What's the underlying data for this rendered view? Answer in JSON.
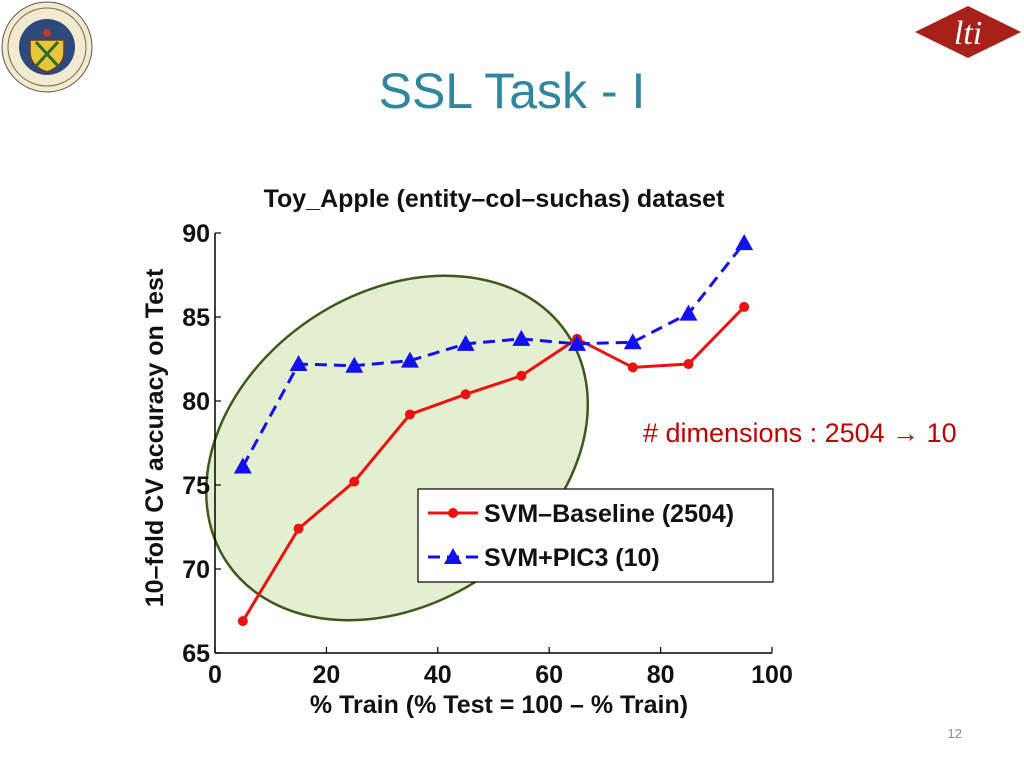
{
  "slide": {
    "title": "SSL Task - I",
    "page_number": "12",
    "annotation": "# dimensions : 2504 → 10",
    "logo_text": "lti",
    "seal_text": "Carnegie-Mellon University · Pittsburgh Pennsylvania 1900",
    "colors": {
      "title": "#31859c",
      "annotation": "#c00000",
      "lti_red": "#a8201a"
    }
  },
  "chart_data": {
    "type": "line",
    "title": "Toy_Apple (entity–col–suchas) dataset",
    "xlabel": "% Train (% Test = 100 – % Train)",
    "ylabel": "10–fold CV accuracy on Test",
    "xlim": [
      0,
      100
    ],
    "ylim": [
      65,
      90
    ],
    "xticks": [
      0,
      20,
      40,
      60,
      80,
      100
    ],
    "yticks": [
      65,
      70,
      75,
      80,
      85,
      90
    ],
    "grid": false,
    "legend_position": "lower-right",
    "x": [
      5,
      15,
      25,
      35,
      45,
      55,
      65,
      75,
      85,
      95
    ],
    "series": [
      {
        "name": "SVM–Baseline (2504)",
        "color": "#ee1111",
        "marker": "circle",
        "line_style": "solid",
        "values": [
          66.9,
          72.4,
          75.2,
          79.2,
          80.4,
          81.5,
          83.7,
          82.0,
          82.2,
          85.6
        ]
      },
      {
        "name": "SVM+PIC3 (10)",
        "color": "#1111ee",
        "marker": "triangle",
        "line_style": "dashed",
        "values": [
          76.1,
          82.2,
          82.1,
          82.4,
          83.4,
          83.7,
          83.4,
          83.5,
          85.2,
          89.4
        ]
      }
    ],
    "highlight": {
      "shape": "ellipse",
      "fill": "#c6dfa0",
      "stroke": "#3d5a1c"
    }
  }
}
